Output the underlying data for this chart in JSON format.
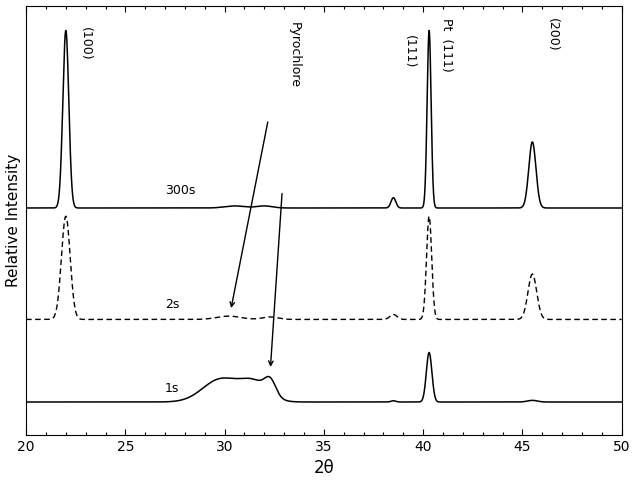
{
  "title": "",
  "xlabel": "2θ",
  "ylabel": "Relative Intensity",
  "xlim": [
    20,
    50
  ],
  "background_color": "#ffffff",
  "label_300s": "300s",
  "label_2s": "2s",
  "label_1s": "1s",
  "ann_100": "(100)",
  "ann_111": "(111)",
  "ann_pt111": "Pt  (111)",
  "ann_200": "(200)",
  "ann_pyrochlore": "Pyrochlore"
}
